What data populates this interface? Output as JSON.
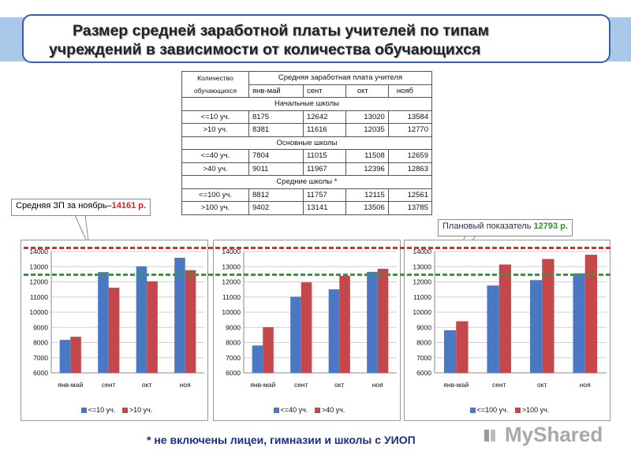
{
  "title": {
    "line1": "Размер средней заработной платы учителей по типам",
    "line2": "учреждений в зависимости от количества обучающихся"
  },
  "table": {
    "count_header": "Количество обучающихся",
    "salary_header": "Средняя заработная плата учителя",
    "periods": [
      "янв-май",
      "сент",
      "окт",
      "нояб"
    ],
    "sections": [
      {
        "name": "Начальные школы",
        "rows": [
          {
            "label": "<=10 уч.",
            "values": [
              "8175",
              "12642",
              "13020",
              "13584"
            ]
          },
          {
            "label": ">10 уч.",
            "values": [
              "8381",
              "11616",
              "12035",
              "12770"
            ]
          }
        ]
      },
      {
        "name": "Основные школы",
        "rows": [
          {
            "label": "<=40 уч.",
            "values": [
              "7804",
              "11015",
              "11508",
              "12659"
            ]
          },
          {
            "label": ">40 уч.",
            "values": [
              "9011",
              "11967",
              "12396",
              "12863"
            ]
          }
        ]
      },
      {
        "name": "Средние школы *",
        "rows": [
          {
            "label": "<=100 уч.",
            "values": [
              "8812",
              "11757",
              "12115",
              "12561"
            ]
          },
          {
            "label": ">100 уч.",
            "values": [
              "9402",
              "13141",
              "13506",
              "13785"
            ]
          }
        ]
      }
    ]
  },
  "callouts": {
    "avg_text": "Средняя ЗП за ноябрь–",
    "avg_value": "14161 р.",
    "plan_text": "Плановый показатель ",
    "plan_value": "12793 р."
  },
  "footnote": "* не включены лицеи, гимназии и школы с УИОП",
  "logo": "MyShared",
  "colors": {
    "series1": "#4a78c2",
    "series2": "#c4484b",
    "avg_line": "#e02a2a",
    "plan_line": "#1fa82e"
  },
  "chart_data": [
    {
      "type": "bar",
      "categories": [
        "янв-май",
        "сент",
        "окт",
        "ноя"
      ],
      "series": [
        {
          "name": "<=10 уч.",
          "values": [
            8175,
            12642,
            13020,
            13584
          ]
        },
        {
          "name": ">10 уч.",
          "values": [
            8381,
            11616,
            12035,
            12770
          ]
        }
      ],
      "ylim": [
        6000,
        14000
      ],
      "yticks": [
        6000,
        7000,
        8000,
        9000,
        10000,
        11000,
        12000,
        13000,
        14000
      ],
      "grid": true,
      "legend": "bottom"
    },
    {
      "type": "bar",
      "categories": [
        "янв-май",
        "сент",
        "окт",
        "ноя"
      ],
      "series": [
        {
          "name": "<=40 уч.",
          "values": [
            7804,
            11015,
            11508,
            12659
          ]
        },
        {
          "name": ">40 уч.",
          "values": [
            9011,
            11967,
            12396,
            12863
          ]
        }
      ],
      "ylim": [
        6000,
        14000
      ],
      "yticks": [
        6000,
        7000,
        8000,
        9000,
        10000,
        11000,
        12000,
        13000,
        14000
      ],
      "grid": true,
      "legend": "bottom"
    },
    {
      "type": "bar",
      "categories": [
        "янв-май",
        "сент",
        "окт",
        "ноя"
      ],
      "series": [
        {
          "name": "<=100 уч.",
          "values": [
            8812,
            11757,
            12115,
            12561
          ]
        },
        {
          "name": ">100 уч.",
          "values": [
            9402,
            13141,
            13506,
            13785
          ]
        }
      ],
      "ylim": [
        6000,
        14000
      ],
      "yticks": [
        6000,
        7000,
        8000,
        9000,
        10000,
        11000,
        12000,
        13000,
        14000
      ],
      "grid": true,
      "legend": "bottom"
    }
  ]
}
